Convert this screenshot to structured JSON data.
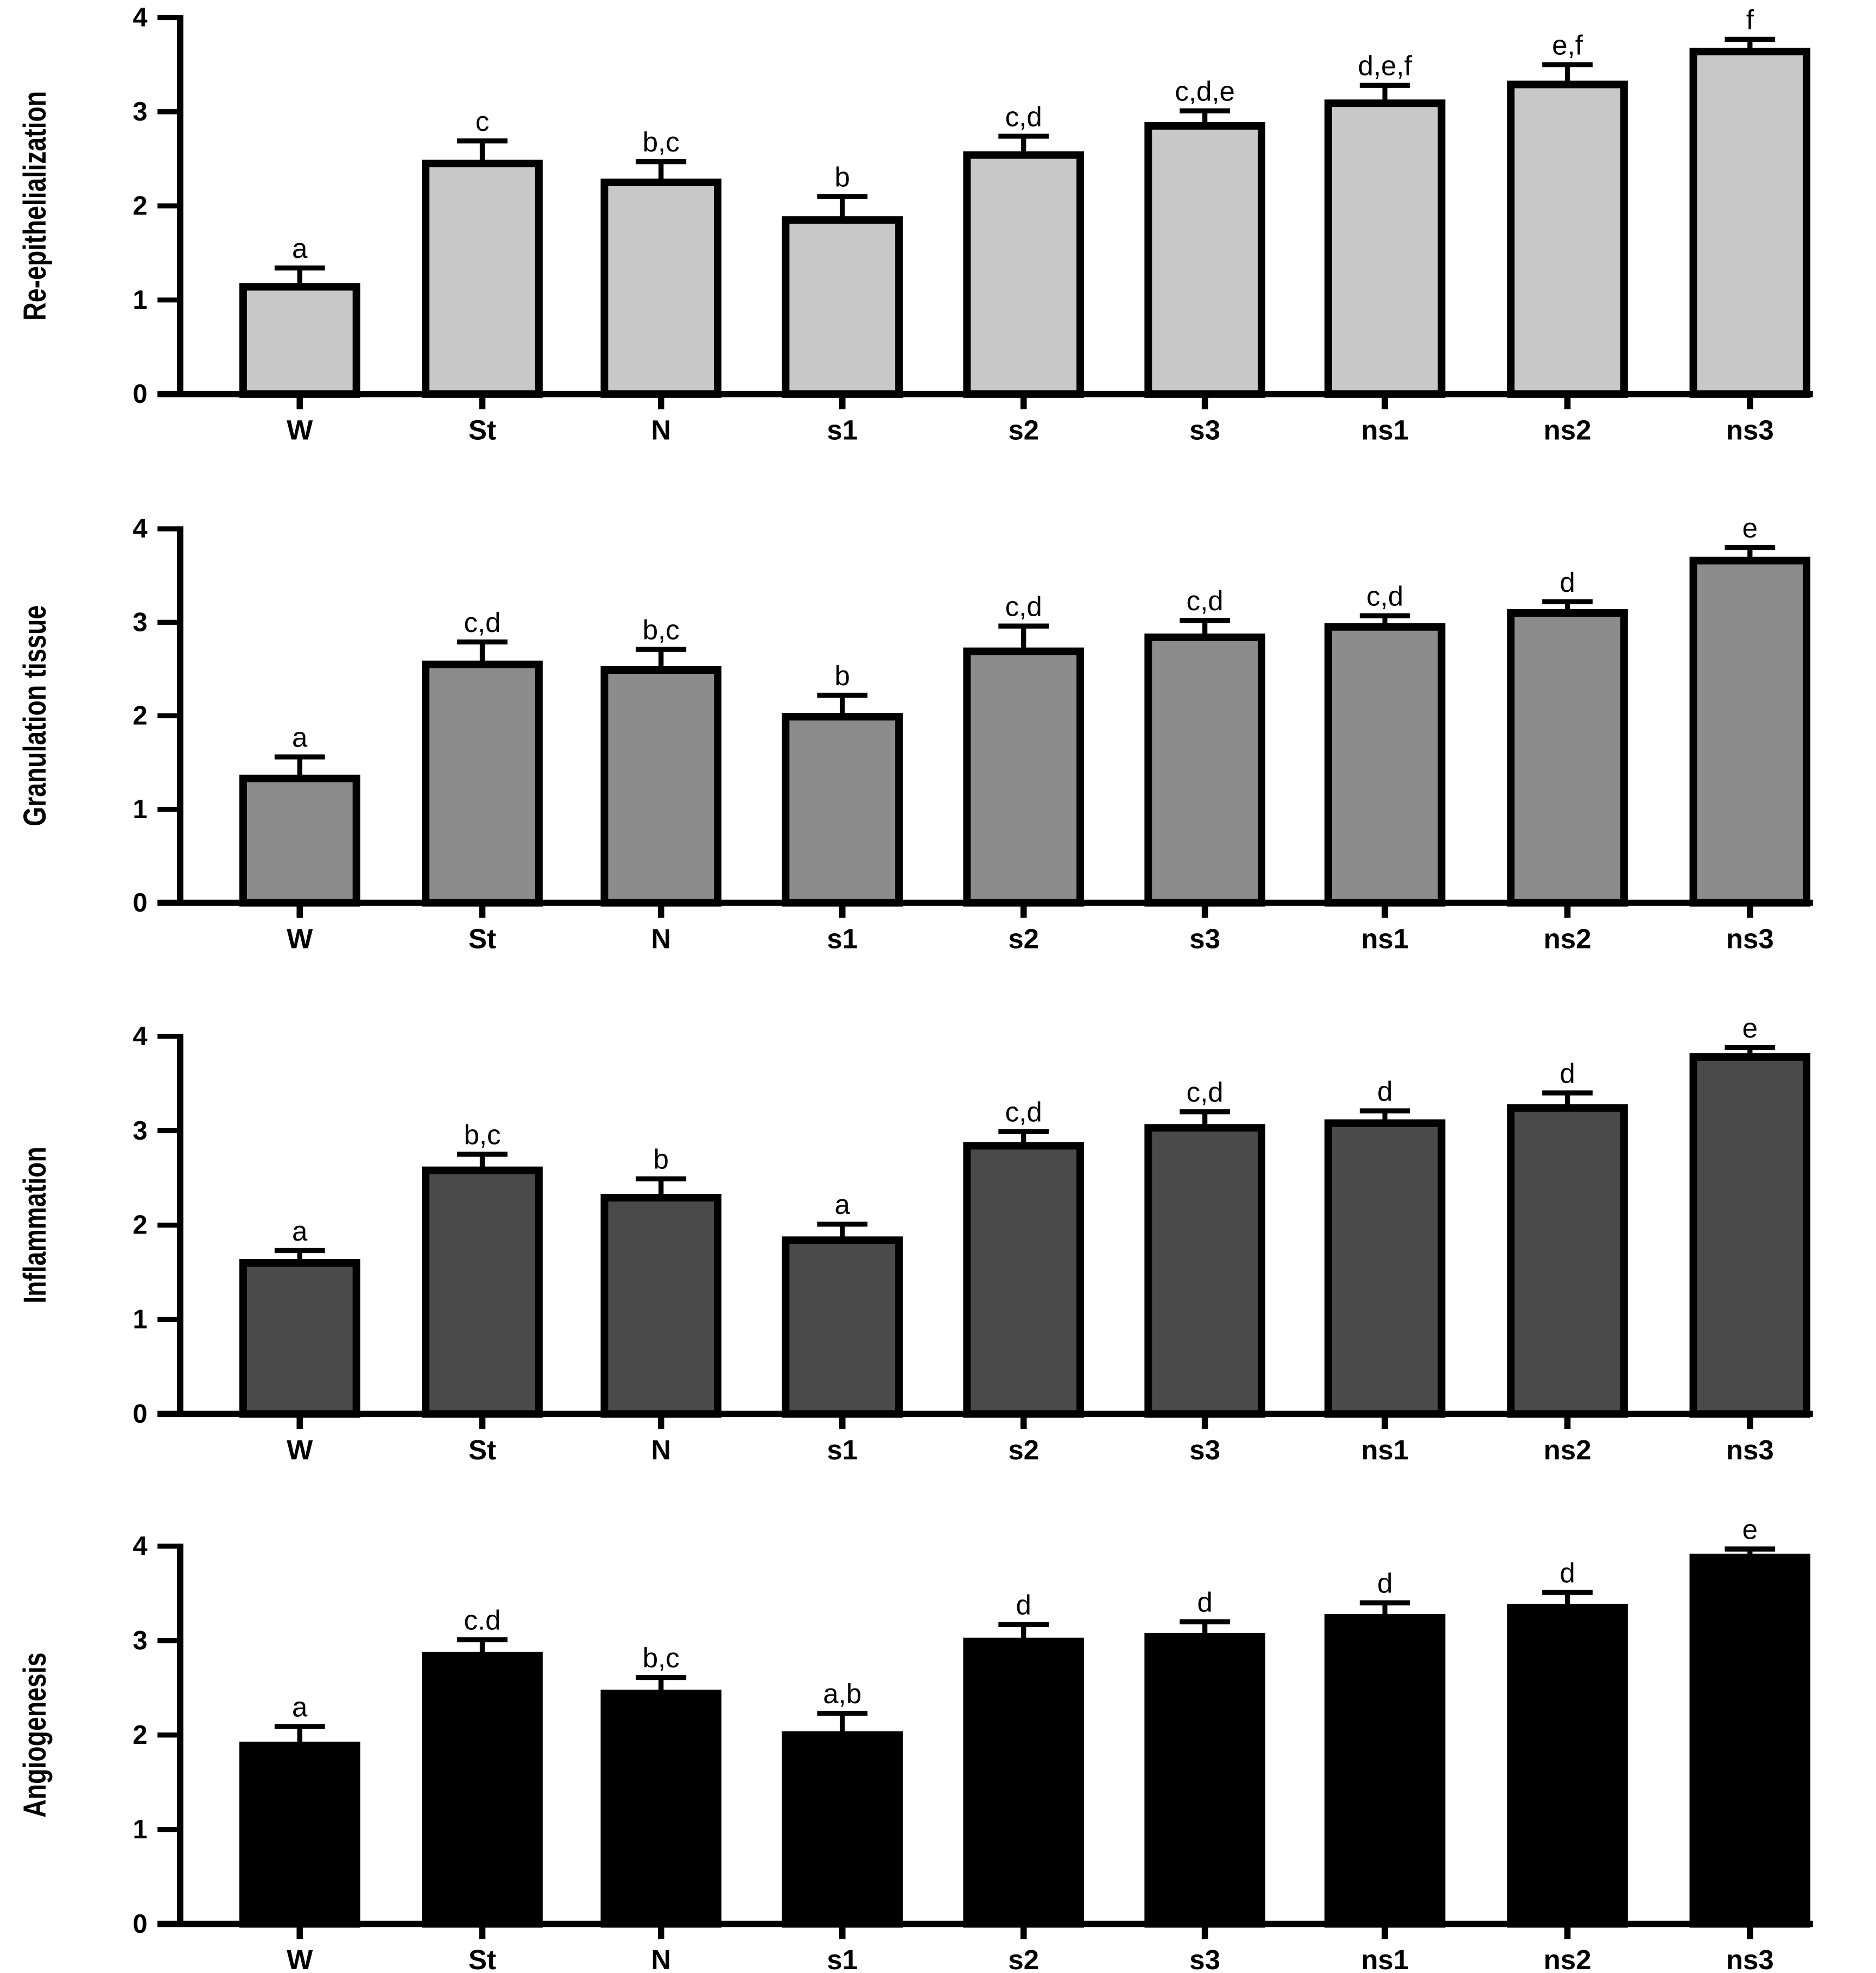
{
  "chart_data": [
    {
      "type": "bar",
      "ylabel": "Re-epithelialization",
      "ylim": [
        0,
        4
      ],
      "yticks": [
        "0",
        "1",
        "2",
        "3",
        "4"
      ],
      "categories": [
        "W",
        "St",
        "N",
        "s1",
        "s2",
        "s3",
        "ns1",
        "ns2",
        "ns3"
      ],
      "values": [
        1.14,
        2.45,
        2.25,
        1.85,
        2.54,
        2.85,
        3.09,
        3.29,
        3.64
      ],
      "error_upper": [
        1.34,
        2.69,
        2.47,
        2.1,
        2.74,
        3.01,
        3.28,
        3.5,
        3.77
      ],
      "significance": [
        "a",
        "c",
        "b,c",
        "b",
        "c,d",
        "c,d,e",
        "d,e,f",
        "e,f",
        "f"
      ],
      "color": "#c8c8c8"
    },
    {
      "type": "bar",
      "ylabel": "Granulation tissue",
      "ylim": [
        0,
        4
      ],
      "yticks": [
        "0",
        "1",
        "2",
        "3",
        "4"
      ],
      "categories": [
        "W",
        "St",
        "N",
        "s1",
        "s2",
        "s3",
        "ns1",
        "ns2",
        "ns3"
      ],
      "values": [
        1.33,
        2.55,
        2.49,
        1.99,
        2.69,
        2.84,
        2.95,
        3.1,
        3.66
      ],
      "error_upper": [
        1.56,
        2.79,
        2.71,
        2.22,
        2.96,
        3.02,
        3.07,
        3.22,
        3.8
      ],
      "significance": [
        "a",
        "c,d",
        "b,c",
        "b",
        "c,d",
        "c,d",
        "c,d",
        "d",
        "e"
      ],
      "color": "#8c8c8c"
    },
    {
      "type": "bar",
      "ylabel": "Inflammation",
      "ylim": [
        0,
        4
      ],
      "yticks": [
        "0",
        "1",
        "2",
        "3",
        "4"
      ],
      "categories": [
        "W",
        "St",
        "N",
        "s1",
        "s2",
        "s3",
        "ns1",
        "ns2",
        "ns3"
      ],
      "values": [
        1.6,
        2.58,
        2.29,
        1.84,
        2.84,
        3.03,
        3.08,
        3.24,
        3.78
      ],
      "error_upper": [
        1.73,
        2.75,
        2.49,
        2.01,
        2.99,
        3.2,
        3.21,
        3.4,
        3.88
      ],
      "significance": [
        "a",
        "b,c",
        "b",
        "a",
        "c,d",
        "c,d",
        "d",
        "d",
        "e"
      ],
      "color": "#4a4a4a"
    },
    {
      "type": "bar",
      "ylabel": "Angiogenesis",
      "ylim": [
        0,
        4
      ],
      "yticks": [
        "0",
        "1",
        "2",
        "3",
        "4"
      ],
      "categories": [
        "W",
        "St",
        "N",
        "s1",
        "s2",
        "s3",
        "ns1",
        "ns2",
        "ns3"
      ],
      "values": [
        1.89,
        2.84,
        2.44,
        2.0,
        2.99,
        3.04,
        3.24,
        3.35,
        3.88
      ],
      "error_upper": [
        2.09,
        3.01,
        2.61,
        2.23,
        3.17,
        3.2,
        3.4,
        3.51,
        3.97
      ],
      "significance": [
        "a",
        "c.d",
        "b,c",
        "a,b",
        "d",
        "d",
        "d",
        "d",
        "e"
      ],
      "color": "#000000"
    }
  ]
}
